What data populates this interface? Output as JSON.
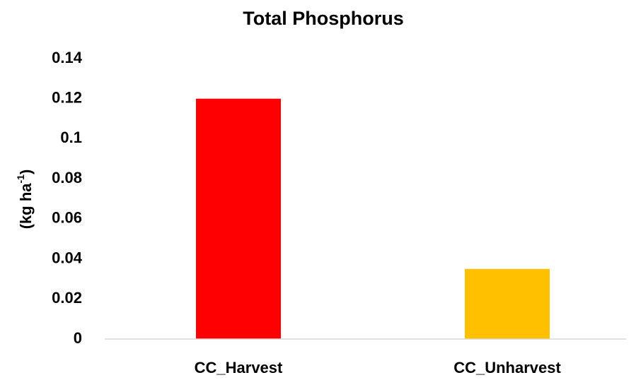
{
  "chart_data": {
    "type": "bar",
    "title": "Total Phosphorus",
    "ylabel": [
      "(kg ha",
      "-1",
      ")"
    ],
    "categories": [
      "CC_Harvest",
      "CC_Unharvest"
    ],
    "values": [
      0.12,
      0.035
    ],
    "colors": [
      "#ff0000",
      "#ffc000"
    ],
    "ylim": [
      0,
      0.14
    ],
    "yticks": [
      0,
      0.02,
      0.04,
      0.06,
      0.08,
      0.1,
      0.12,
      0.14
    ],
    "grid": false
  }
}
